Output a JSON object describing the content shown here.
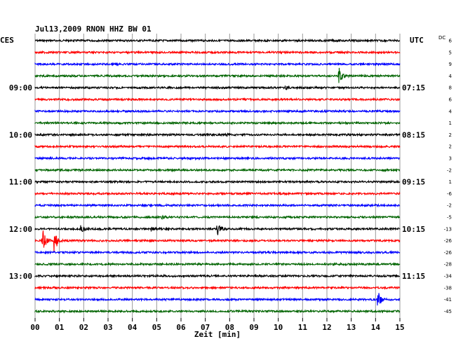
{
  "chart_data": {
    "type": "line",
    "title": "Jul13,2009   RNON HHZ BW 01",
    "left_zone_label": "CES",
    "right_zone_label": "UTC",
    "dc_label": "DC",
    "xlabel": "Zeit [min]",
    "xlim": [
      0,
      15
    ],
    "x_ticks": [
      "00",
      "01",
      "02",
      "03",
      "04",
      "05",
      "06",
      "07",
      "08",
      "09",
      "10",
      "11",
      "12",
      "13",
      "14",
      "15"
    ],
    "trace_colors": [
      "#000000",
      "#ff0000",
      "#0000ff",
      "#006400"
    ],
    "left_time_labels": [
      {
        "row": 4,
        "label": "09:00"
      },
      {
        "row": 8,
        "label": "10:00"
      },
      {
        "row": 12,
        "label": "11:00"
      },
      {
        "row": 16,
        "label": "12:00"
      },
      {
        "row": 20,
        "label": "13:00"
      }
    ],
    "right_time_labels": [
      {
        "row": 4,
        "label": "07:15"
      },
      {
        "row": 8,
        "label": "08:15"
      },
      {
        "row": 12,
        "label": "09:15"
      },
      {
        "row": 16,
        "label": "10:15"
      },
      {
        "row": 20,
        "label": "11:15"
      }
    ],
    "dc_offsets": [
      "6",
      "5",
      "9",
      "4",
      "8",
      "6",
      "4",
      "1",
      "2",
      "2",
      "3",
      "-2",
      "1",
      "-6",
      "-2",
      "-5",
      "-13",
      "-26",
      "-26",
      "-28",
      "-34",
      "-38",
      "-41",
      "-45"
    ],
    "events": [
      {
        "row": 3,
        "minute": 12.5,
        "amplitude": 11
      },
      {
        "row": 4,
        "minute": 10.3,
        "amplitude": 2
      },
      {
        "row": 8,
        "minute": 7.9,
        "amplitude": 3
      },
      {
        "row": 15,
        "minute": 5.2,
        "amplitude": 3
      },
      {
        "row": 16,
        "minute": 1.9,
        "amplitude": 5
      },
      {
        "row": 16,
        "minute": 4.8,
        "amplitude": 3
      },
      {
        "row": 16,
        "minute": 7.5,
        "amplitude": 10
      },
      {
        "row": 17,
        "minute": 0.3,
        "amplitude": 18
      },
      {
        "row": 17,
        "minute": 0.8,
        "amplitude": 16
      },
      {
        "row": 22,
        "minute": 14.1,
        "amplitude": 14
      }
    ]
  }
}
